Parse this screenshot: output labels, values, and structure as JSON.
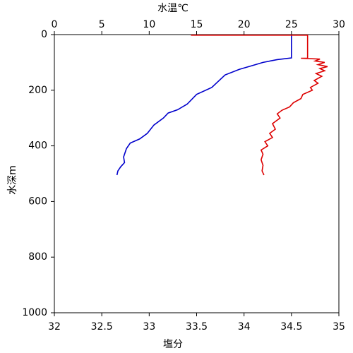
{
  "chart_data": {
    "type": "profile",
    "x_label": "塩分",
    "x_label_color": "#cc0000",
    "x2_label": "水温℃",
    "x2_label_color": "#0000cc",
    "y_label": "水深m",
    "xlim": [
      32,
      35
    ],
    "xticks": [
      32,
      32.5,
      33,
      33.5,
      34,
      34.5,
      35
    ],
    "x2lim": [
      0,
      30
    ],
    "x2ticks": [
      0,
      5,
      10,
      15,
      20,
      25,
      30
    ],
    "ylim": [
      0,
      1000
    ],
    "yticks": [
      0,
      200,
      400,
      600,
      800,
      1000
    ],
    "y_inverted": true,
    "series": [
      {
        "color": "#0000cc",
        "axis": "x2",
        "x": [
          25,
          25,
          23.5,
          22,
          21,
          19.5,
          18,
          16.6,
          15,
          14,
          13,
          12,
          11.5,
          10.5,
          9.8,
          9,
          8,
          7.6,
          7.3,
          7.4,
          7,
          6.7,
          6.6
        ],
        "y": [
          0,
          84,
          90,
          100,
          110,
          125,
          145,
          190,
          215,
          250,
          270,
          282,
          300,
          325,
          355,
          375,
          390,
          410,
          440,
          460,
          475,
          490,
          505
        ]
      },
      {
        "color": "#dd0000",
        "axis": "x",
        "x": [
          33.44,
          34.67,
          34.67,
          34.6,
          34.8,
          34.75,
          34.85,
          34.78,
          34.88,
          34.8,
          34.85,
          34.76,
          34.82,
          34.74,
          34.78,
          34.7,
          34.72,
          34.62,
          34.6,
          34.52,
          34.48,
          34.4,
          34.35,
          34.38,
          34.3,
          34.33,
          34.27,
          34.3,
          34.22,
          34.25,
          34.18,
          34.2,
          34.18,
          34.2,
          34.19,
          34.21
        ],
        "y": [
          2,
          2,
          85,
          85,
          88,
          95,
          100,
          108,
          115,
          122,
          130,
          140,
          150,
          165,
          175,
          190,
          200,
          215,
          230,
          245,
          260,
          272,
          285,
          300,
          320,
          340,
          355,
          370,
          385,
          400,
          415,
          430,
          450,
          470,
          490,
          505
        ]
      }
    ]
  }
}
